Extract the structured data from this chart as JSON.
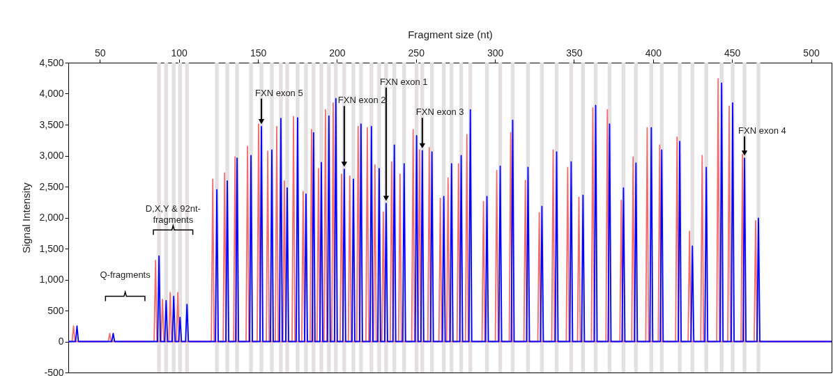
{
  "chart_data": {
    "type": "line",
    "xlabel": "Fragment size (nt)",
    "ylabel": "Signal Intensity",
    "xlim": [
      30,
      513
    ],
    "ylim": [
      -500,
      4500
    ],
    "xticks": [
      50,
      100,
      150,
      200,
      250,
      300,
      350,
      400,
      450,
      500
    ],
    "yticks": [
      -500,
      0,
      500,
      {
        "value": 1000,
        "label": "1,000"
      },
      {
        "value": 1500,
        "label": "1,500"
      },
      {
        "value": 2000,
        "label": "2,000"
      },
      {
        "value": 2500,
        "label": "2,500"
      },
      {
        "value": 3000,
        "label": "3,000"
      },
      {
        "value": 3500,
        "label": "3,500"
      },
      {
        "value": 4000,
        "label": "4,000"
      },
      {
        "value": 4500,
        "label": "4,500"
      }
    ],
    "grid": false,
    "series": [
      {
        "color": "#f26d6d",
        "x": [
          30,
          32.4,
          33.3,
          34.2,
          55.3,
          56.2,
          57.1,
          84.3,
          85.2,
          86.1,
          88.7,
          89.6,
          90.5,
          93.6,
          94.5,
          95.4,
          98.4,
          99.3,
          100.2,
          120.5,
          121.4,
          122.3,
          128.0,
          128.9,
          129.8,
          134.6,
          135.5,
          136.4,
          142.5,
          143.4,
          144.3,
          149.5,
          150.4,
          151.3,
          155.3,
          156.2,
          157.1,
          161.0,
          161.9,
          162.8,
          165.8,
          166.7,
          167.6,
          171.6,
          172.5,
          173.4,
          177.7,
          178.6,
          179.5,
          183.0,
          183.9,
          184.8,
          187.4,
          188.3,
          189.2,
          191.8,
          192.7,
          193.6,
          196.7,
          197.6,
          198.5,
          202.0,
          202.9,
          203.8,
          207.2,
          208.1,
          209.0,
          212.5,
          213.4,
          214.3,
          218.3,
          219.2,
          220.1,
          223.1,
          224.0,
          224.9,
          228.4,
          229.3,
          230.2,
          233.7,
          234.6,
          235.5,
          239.0,
          239.9,
          240.8,
          247.3,
          248.2,
          249.1,
          251.3,
          252.2,
          253.1,
          257.5,
          258.4,
          259.3,
          264.5,
          265.4,
          266.3,
          269.4,
          270.3,
          271.2,
          276.0,
          276.9,
          277.8,
          281.3,
          282.2,
          283.1,
          291.8,
          292.7,
          293.6,
          300.2,
          301.1,
          302.0,
          309.0,
          309.9,
          310.8,
          318.3,
          319.2,
          320.1,
          327.1,
          328.0,
          328.9,
          335.9,
          336.8,
          337.7,
          345.1,
          346.0,
          346.9,
          352.2,
          353.1,
          354.0,
          361.0,
          361.9,
          362.8,
          370.2,
          371.1,
          372.0,
          379.0,
          379.9,
          380.8,
          386.5,
          387.4,
          388.3,
          395.4,
          396.3,
          397.2,
          403.3,
          404.2,
          405.1,
          414.3,
          415.2,
          416.1,
          422.2,
          423.1,
          424.0,
          430.2,
          431.1,
          432.0,
          440.3,
          441.2,
          442.1,
          447.3,
          448.2,
          449.1,
          455.7,
          456.6,
          457.5,
          464.0,
          464.9,
          465.8,
          513
        ],
        "values": [
          0,
          0,
          250,
          0,
          0,
          130,
          0,
          0,
          1310,
          0,
          0,
          680,
          0,
          0,
          790,
          0,
          0,
          790,
          0,
          0,
          2620,
          0,
          0,
          2720,
          0,
          0,
          2980,
          0,
          0,
          3150,
          0,
          0,
          3510,
          0,
          0,
          3070,
          0,
          0,
          3470,
          0,
          0,
          2590,
          0,
          0,
          3630,
          0,
          0,
          2420,
          0,
          0,
          3420,
          0,
          0,
          2790,
          0,
          0,
          3740,
          0,
          0,
          3850,
          0,
          0,
          2700,
          0,
          0,
          2670,
          0,
          0,
          3470,
          0,
          0,
          3450,
          0,
          0,
          2850,
          0,
          0,
          2090,
          0,
          0,
          2900,
          0,
          0,
          2700,
          0,
          0,
          3420,
          0,
          0,
          3090,
          0,
          0,
          3130,
          0,
          0,
          2310,
          0,
          0,
          2640,
          0,
          0,
          2870,
          0,
          0,
          3340,
          0,
          0,
          2260,
          0,
          0,
          2760,
          0,
          0,
          3370,
          0,
          0,
          2600,
          0,
          0,
          2080,
          0,
          0,
          3090,
          0,
          0,
          2810,
          0,
          0,
          2330,
          0,
          0,
          3770,
          0,
          0,
          3740,
          0,
          0,
          2280,
          0,
          0,
          2980,
          0,
          0,
          3450,
          0,
          0,
          3170,
          0,
          0,
          3300,
          0,
          0,
          1780,
          0,
          0,
          3000,
          0,
          0,
          4240,
          0,
          0,
          3800,
          0,
          0,
          3020,
          0,
          0,
          1950,
          0,
          0
        ]
      },
      {
        "color": "#0000ff",
        "x": [
          30,
          34.6,
          35.5,
          36.4,
          57.5,
          58.4,
          59.3,
          86.5,
          87.4,
          88.3,
          91.0,
          91.9,
          92.8,
          95.8,
          96.7,
          97.6,
          99.8,
          100.7,
          101.6,
          104.2,
          105.1,
          106.0,
          123.1,
          124.0,
          124.9,
          129.7,
          130.6,
          131.5,
          135.9,
          136.8,
          137.7,
          144.7,
          145.6,
          146.5,
          151.3,
          152.2,
          153.1,
          157.9,
          158.8,
          159.7,
          163.6,
          164.5,
          165.4,
          167.6,
          168.5,
          169.4,
          174.2,
          175.1,
          176.0,
          179.5,
          180.4,
          181.3,
          184.3,
          185.2,
          186.1,
          189.2,
          190.1,
          191.0,
          194.0,
          194.9,
          195.8,
          198.4,
          199.3,
          200.2,
          203.7,
          204.6,
          205.5,
          209.5,
          210.4,
          211.3,
          214.3,
          215.2,
          216.1,
          220.9,
          221.8,
          222.7,
          225.8,
          226.7,
          227.6,
          230.2,
          231.1,
          232.0,
          235.4,
          236.3,
          237.2,
          241.6,
          242.5,
          243.4,
          249.5,
          250.4,
          251.3,
          253.1,
          254.0,
          254.9,
          259.2,
          260.1,
          261.0,
          266.7,
          267.6,
          268.5,
          271.6,
          272.5,
          273.4,
          277.7,
          278.6,
          279.5,
          283.5,
          284.4,
          285.3,
          294.0,
          294.9,
          295.8,
          302.4,
          303.3,
          304.2,
          310.3,
          311.2,
          312.1,
          320.0,
          320.9,
          321.8,
          328.8,
          329.7,
          330.6,
          338.1,
          339.0,
          339.9,
          347.3,
          348.2,
          349.1,
          354.8,
          355.7,
          356.6,
          362.8,
          363.7,
          364.6,
          371.6,
          372.5,
          373.4,
          380.4,
          381.3,
          382.2,
          388.3,
          389.2,
          390.1,
          398.0,
          398.9,
          399.8,
          404.6,
          405.5,
          406.4,
          416.0,
          416.9,
          417.8,
          424.0,
          424.9,
          425.8,
          432.8,
          433.7,
          434.6,
          442.5,
          443.4,
          444.3,
          449.5,
          450.4,
          451.3,
          457.0,
          457.9,
          458.8,
          465.8,
          466.7,
          467.6,
          513
        ],
        "values": [
          0,
          0,
          250,
          0,
          0,
          130,
          0,
          0,
          1380,
          0,
          0,
          660,
          0,
          0,
          730,
          0,
          0,
          390,
          0,
          0,
          600,
          0,
          0,
          2450,
          0,
          0,
          2590,
          0,
          0,
          2960,
          0,
          0,
          3000,
          0,
          0,
          3470,
          0,
          0,
          3090,
          0,
          0,
          3600,
          0,
          0,
          2480,
          0,
          0,
          3610,
          0,
          0,
          2380,
          0,
          0,
          3370,
          0,
          0,
          2890,
          0,
          0,
          3640,
          0,
          0,
          3920,
          0,
          0,
          2780,
          0,
          0,
          2620,
          0,
          0,
          3510,
          0,
          0,
          3470,
          0,
          0,
          2790,
          0,
          0,
          2230,
          0,
          0,
          3170,
          0,
          0,
          2870,
          0,
          0,
          3320,
          0,
          0,
          3080,
          0,
          0,
          3060,
          0,
          0,
          2340,
          0,
          0,
          2870,
          0,
          0,
          3000,
          0,
          0,
          3740,
          0,
          0,
          2340,
          0,
          0,
          2830,
          0,
          0,
          3570,
          0,
          0,
          2810,
          0,
          0,
          2180,
          0,
          0,
          3060,
          0,
          0,
          2900,
          0,
          0,
          2360,
          0,
          0,
          3810,
          0,
          0,
          3510,
          0,
          0,
          2480,
          0,
          0,
          2880,
          0,
          0,
          3450,
          0,
          0,
          3090,
          0,
          0,
          3230,
          0,
          0,
          1540,
          0,
          0,
          2810,
          0,
          0,
          4170,
          0,
          0,
          3850,
          0,
          0,
          2960,
          0,
          0,
          1990,
          0,
          0
        ]
      }
    ],
    "bands": [
      {
        "axis": "x",
        "from": 86.2,
        "to": 88.6,
        "color": "#e4e0e1"
      },
      {
        "axis": "x",
        "from": 90.7,
        "to": 93.1,
        "color": "#e4e0e1"
      },
      {
        "axis": "x",
        "from": 95.5,
        "to": 97.9,
        "color": "#e4e0e1"
      },
      {
        "axis": "x",
        "from": 99.5,
        "to": 101.9,
        "color": "#e4e0e1"
      },
      {
        "axis": "x",
        "from": 103.9,
        "to": 106.3,
        "color": "#e4e0e1"
      },
      {
        "axis": "x",
        "from": 122.8,
        "to": 125.2,
        "color": "#e4e0e1"
      },
      {
        "axis": "x",
        "from": 129.4,
        "to": 131.8,
        "color": "#e4e0e1"
      },
      {
        "axis": "x",
        "from": 135.6,
        "to": 138.0,
        "color": "#e4e0e1"
      },
      {
        "axis": "x",
        "from": 144.4,
        "to": 146.8,
        "color": "#e4e0e1"
      },
      {
        "axis": "x",
        "from": 151.0,
        "to": 153.4,
        "color": "#e4e0e1"
      },
      {
        "axis": "x",
        "from": 157.6,
        "to": 160.0,
        "color": "#e4e0e1"
      },
      {
        "axis": "x",
        "from": 163.3,
        "to": 165.7,
        "color": "#e4e0e1"
      },
      {
        "axis": "x",
        "from": 167.3,
        "to": 169.7,
        "color": "#e4e0e1"
      },
      {
        "axis": "x",
        "from": 173.9,
        "to": 176.3,
        "color": "#e4e0e1"
      },
      {
        "axis": "x",
        "from": 179.2,
        "to": 181.6,
        "color": "#e4e0e1"
      },
      {
        "axis": "x",
        "from": 184.0,
        "to": 186.4,
        "color": "#e4e0e1"
      },
      {
        "axis": "x",
        "from": 188.9,
        "to": 191.3,
        "color": "#e4e0e1"
      },
      {
        "axis": "x",
        "from": 193.7,
        "to": 196.1,
        "color": "#e4e0e1"
      },
      {
        "axis": "x",
        "from": 198.1,
        "to": 200.5,
        "color": "#e4e0e1"
      },
      {
        "axis": "x",
        "from": 203.4,
        "to": 205.8,
        "color": "#e4e0e1"
      },
      {
        "axis": "x",
        "from": 209.2,
        "to": 211.6,
        "color": "#e4e0e1"
      },
      {
        "axis": "x",
        "from": 214.0,
        "to": 216.4,
        "color": "#e4e0e1"
      },
      {
        "axis": "x",
        "from": 220.6,
        "to": 223.0,
        "color": "#e4e0e1"
      },
      {
        "axis": "x",
        "from": 225.5,
        "to": 227.9,
        "color": "#e4e0e1"
      },
      {
        "axis": "x",
        "from": 229.9,
        "to": 232.3,
        "color": "#e4e0e1"
      },
      {
        "axis": "x",
        "from": 235.1,
        "to": 237.5,
        "color": "#e4e0e1"
      },
      {
        "axis": "x",
        "from": 241.3,
        "to": 243.7,
        "color": "#e4e0e1"
      },
      {
        "axis": "x",
        "from": 249.2,
        "to": 251.6,
        "color": "#e4e0e1"
      },
      {
        "axis": "x",
        "from": 252.8,
        "to": 255.2,
        "color": "#e4e0e1"
      },
      {
        "axis": "x",
        "from": 258.9,
        "to": 261.3,
        "color": "#e4e0e1"
      },
      {
        "axis": "x",
        "from": 266.4,
        "to": 268.8,
        "color": "#e4e0e1"
      },
      {
        "axis": "x",
        "from": 271.3,
        "to": 273.7,
        "color": "#e4e0e1"
      },
      {
        "axis": "x",
        "from": 277.4,
        "to": 279.8,
        "color": "#e4e0e1"
      },
      {
        "axis": "x",
        "from": 283.2,
        "to": 285.6,
        "color": "#e4e0e1"
      },
      {
        "axis": "x",
        "from": 293.7,
        "to": 296.1,
        "color": "#e4e0e1"
      },
      {
        "axis": "x",
        "from": 302.1,
        "to": 304.5,
        "color": "#e4e0e1"
      },
      {
        "axis": "x",
        "from": 310.0,
        "to": 312.4,
        "color": "#e4e0e1"
      },
      {
        "axis": "x",
        "from": 319.7,
        "to": 322.1,
        "color": "#e4e0e1"
      },
      {
        "axis": "x",
        "from": 328.5,
        "to": 330.9,
        "color": "#e4e0e1"
      },
      {
        "axis": "x",
        "from": 337.8,
        "to": 340.2,
        "color": "#e4e0e1"
      },
      {
        "axis": "x",
        "from": 347.0,
        "to": 349.4,
        "color": "#e4e0e1"
      },
      {
        "axis": "x",
        "from": 354.5,
        "to": 356.9,
        "color": "#e4e0e1"
      },
      {
        "axis": "x",
        "from": 362.5,
        "to": 364.9,
        "color": "#e4e0e1"
      },
      {
        "axis": "x",
        "from": 371.3,
        "to": 373.7,
        "color": "#e4e0e1"
      },
      {
        "axis": "x",
        "from": 380.1,
        "to": 382.5,
        "color": "#e4e0e1"
      },
      {
        "axis": "x",
        "from": 388.0,
        "to": 390.4,
        "color": "#e4e0e1"
      },
      {
        "axis": "x",
        "from": 397.7,
        "to": 400.1,
        "color": "#e4e0e1"
      },
      {
        "axis": "x",
        "from": 404.3,
        "to": 406.7,
        "color": "#e4e0e1"
      },
      {
        "axis": "x",
        "from": 415.7,
        "to": 418.1,
        "color": "#e4e0e1"
      },
      {
        "axis": "x",
        "from": 423.7,
        "to": 426.1,
        "color": "#e4e0e1"
      },
      {
        "axis": "x",
        "from": 432.5,
        "to": 434.9,
        "color": "#e4e0e1"
      },
      {
        "axis": "x",
        "from": 442.2,
        "to": 444.6,
        "color": "#e4e0e1"
      },
      {
        "axis": "x",
        "from": 449.2,
        "to": 451.6,
        "color": "#e4e0e1"
      },
      {
        "axis": "x",
        "from": 456.7,
        "to": 459.1,
        "color": "#e4e0e1"
      },
      {
        "axis": "x",
        "from": 465.5,
        "to": 467.9,
        "color": "#e4e0e1"
      }
    ],
    "annotations": [
      "Q-fragments",
      "D,X,Y & 92nt-fragments",
      {
        "text": "FXN exon 5",
        "x": 152.2,
        "y": 3470
      },
      {
        "text": "FXN exon 2",
        "x": 204.6,
        "y": 2780
      },
      {
        "text": "FXN exon 1",
        "x": 231.1,
        "y": 2230
      },
      {
        "text": "FXN exon 3",
        "x": 254.0,
        "y": 3080
      },
      {
        "text": "FXN exon 4",
        "x": 457.9,
        "y": 2960
      }
    ]
  }
}
